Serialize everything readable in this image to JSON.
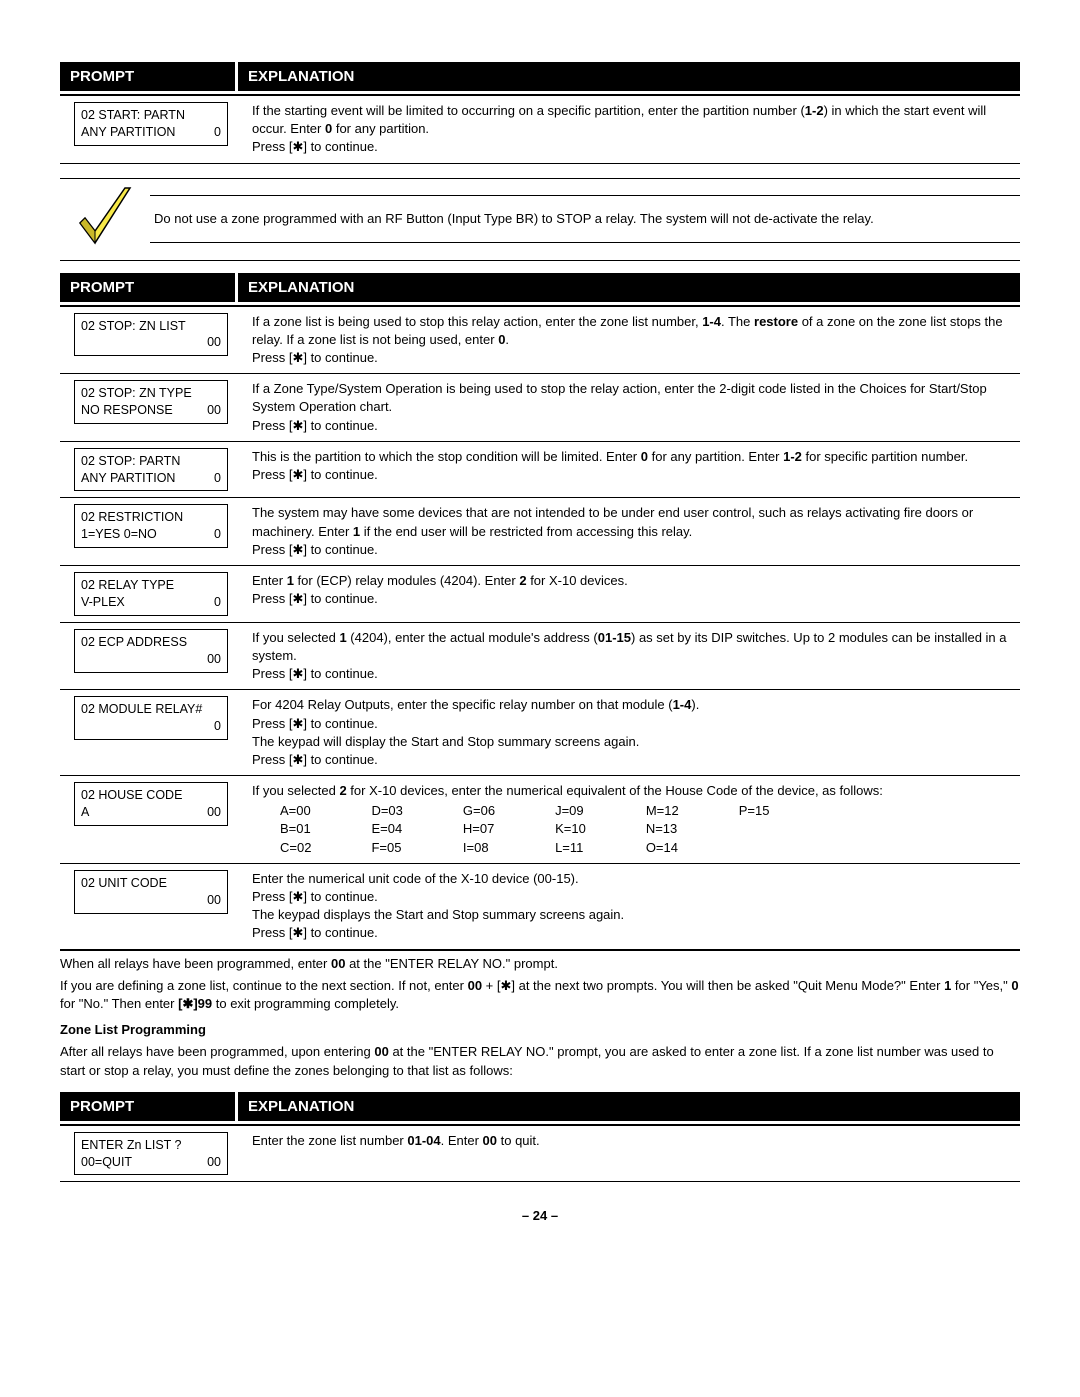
{
  "headers": {
    "prompt": "PROMPT",
    "explanation": "EXPLANATION"
  },
  "section1": {
    "row1": {
      "promptL1": "02  START: PARTN",
      "promptL2a": "ANY PARTITION",
      "promptL2b": "0",
      "expl": "If the starting event will be limited to occurring on a specific partition, enter the partition number (<b>1-2</b>) in which the start event will occur. Enter <b>0</b> for any partition.<br>Press [✱] to continue."
    }
  },
  "noteText": "Do not use a zone programmed with an RF Button (Input Type BR) to STOP a relay. The system will not de-activate the relay.",
  "section2": [
    {
      "l1": "02  STOP: ZN LIST",
      "l2a": "",
      "l2b": "00",
      "expl": "If a zone list is being used to stop this relay action, enter the zone list number, <b>1-4</b>.   The <b>restore</b> of a zone on the zone list stops the relay.  If a zone list is not being used, enter <b>0</b>.<br>Press [✱] to continue."
    },
    {
      "l1": "02  STOP:   ZN TYPE",
      "l2a": "NO RESPONSE",
      "l2b": "00",
      "expl": "If a Zone Type/System Operation is being used to stop the relay action, enter the 2-digit code listed in the Choices for Start/Stop System Operation chart.<br>Press [✱] to continue."
    },
    {
      "l1": "02  STOP:   PARTN",
      "l2a": "ANY PARTITION",
      "l2b": "0",
      "expl": "This is the partition to which the stop condition will be limited.  Enter <b>0</b> for any partition. Enter <b>1-2</b> for specific partition number.<br>Press [✱] to continue."
    },
    {
      "l1": "02  RESTRICTION",
      "l2a": "1=YES   0=NO",
      "l2b": "0",
      "expl": "The system may have some devices that are not intended to be under end user control, such as relays activating fire doors or machinery. Enter <b>1</b> if the end user will be restricted from accessing this relay.<br>Press [✱] to continue."
    },
    {
      "l1": "02  RELAY  TYPE",
      "l2a": "V-PLEX",
      "l2b": "0",
      "expl": "Enter <b>1</b> for (ECP) relay modules (4204).  Enter <b>2</b> for X-10 devices.<br>Press [✱] to continue."
    },
    {
      "l1": "02  ECP ADDRESS",
      "l2a": "",
      "l2b": "00",
      "expl": "If you selected <b>1</b> (4204), enter the actual module's address (<b>01-15</b>) as set by its DIP switches.  Up to 2 modules can be installed in a system.<br>Press [✱] to continue."
    },
    {
      "l1": "02  MODULE RELAY#",
      "l2a": "",
      "l2b": "0",
      "expl": "For 4204 Relay Outputs, enter the specific relay number on that module (<b>1-4</b>).<br>Press [✱] to continue.<br>The keypad will display the Start and Stop summary screens again.<br>Press [✱] to continue."
    }
  ],
  "houseRow": {
    "l1": "02  HOUSE CODE",
    "l2a": "A",
    "l2b": "00",
    "explTop": "If you selected <b>2</b> for X-10 devices, enter the numerical equivalent of the House Code of the device, as follows:",
    "codes": [
      [
        "A=00",
        "B=01",
        "C=02"
      ],
      [
        "D=03",
        "E=04",
        "F=05"
      ],
      [
        "G=06",
        "H=07",
        "I=08"
      ],
      [
        "J=09",
        "K=10",
        "L=11"
      ],
      [
        "M=12",
        "N=13",
        "O=14"
      ],
      [
        "P=15",
        "",
        ""
      ]
    ]
  },
  "unitRow": {
    "l1": "02  UNIT CODE",
    "l2a": "",
    "l2b": "00",
    "expl": "Enter the numerical unit code of the X-10 device (00-15).<br>Press [✱] to continue.<br>The keypad displays the Start and Stop summary screens again.<br>Press [✱] to continue."
  },
  "bodyText": {
    "p1": "When all relays have been programmed, enter <b>00</b> at the \"ENTER RELAY NO.\" prompt.",
    "p2": "If you are defining a zone list, continue to the next section.  If not, enter <b>00</b> + [✱] at the next two prompts.  You will then be asked \"Quit Menu Mode?\"  Enter <b>1</b> for \"Yes,\" <b>0</b> for \"No.\"  Then enter <b>[✱]99</b> to exit programming completely.",
    "sub": "Zone List Programming",
    "p3": "After all relays have been programmed, upon entering <b>00</b> at the \"ENTER RELAY NO.\" prompt, you are asked to enter a zone list.  If a zone list number was used to start or stop a relay, you must define the zones belonging to that list as follows:"
  },
  "section3": {
    "l1": "ENTER  Zn  LIST ?",
    "l2a": "00=QUIT",
    "l2b": "00",
    "expl": "Enter the zone list number <b>01-04</b>.  Enter <b>00</b> to quit."
  },
  "pageNum": "– 24 –"
}
